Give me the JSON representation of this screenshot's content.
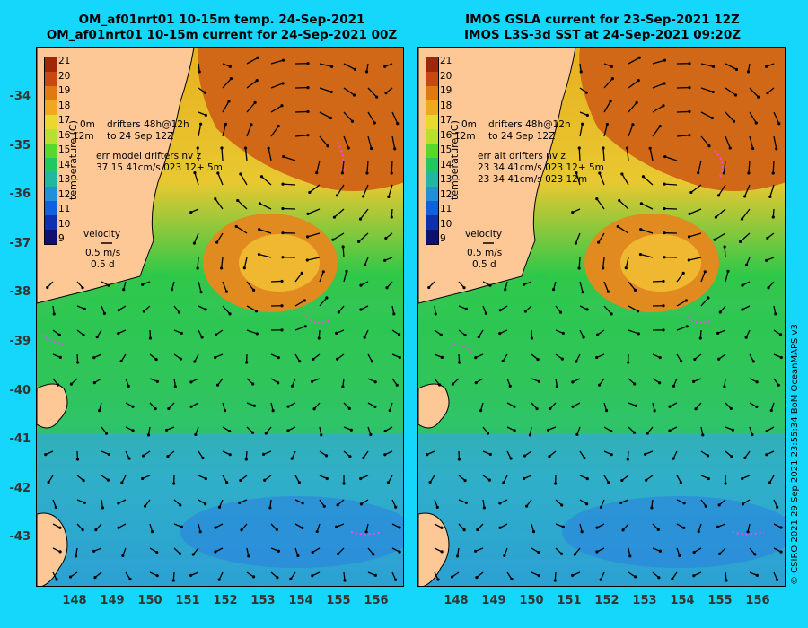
{
  "left_panel": {
    "title_line1": "OM_af01nrt01 10-15m temp. 24-Sep-2021",
    "title_line2": "OM_af01nrt01 10-15m current for 24-Sep-2021 00Z",
    "drifters_line1": "drifters 48h@12h",
    "drifters_line2": "to 24 Sep 12Z",
    "depth_label1": "0m",
    "depth_label2": "12m",
    "err_line1": "err model drifters nv z",
    "err_line2": "37 15 41cm/s 023 12+ 5m",
    "err_line3": ""
  },
  "right_panel": {
    "title_line1": "IMOS GSLA current for 23-Sep-2021 12Z",
    "title_line2": "IMOS L3S-3d SST at 24-Sep-2021 09:20Z",
    "drifters_line1": "drifters 48h@12h",
    "drifters_line2": "to 24 Sep 12Z",
    "depth_label1": "0m",
    "depth_label2": "12m",
    "err_line1": "err alt drifters nv z",
    "err_line2": "23 34 41cm/s 023 12+ 5m",
    "err_line3": "23 34 41cm/s 023 12m"
  },
  "velocity_legend": {
    "title": "velocity",
    "speed": "0.5 m/s",
    "time": "0.5 d"
  },
  "colorbar": {
    "label": "temperature (C)",
    "ticks": [
      "21",
      "20",
      "19",
      "18",
      "17",
      "16",
      "15",
      "14",
      "13",
      "12",
      "11",
      "10",
      "9"
    ],
    "colors": [
      "#a0280a",
      "#c84810",
      "#e07a10",
      "#f0a820",
      "#e8d830",
      "#b8e030",
      "#58d828",
      "#20c860",
      "#20b8a0",
      "#2090d8",
      "#1060e0",
      "#1030b0",
      "#101070"
    ]
  },
  "lat_labels": [
    "-34",
    "-35",
    "-36",
    "-37",
    "-38",
    "-39",
    "-40",
    "-41",
    "-42",
    "-43"
  ],
  "lon_labels": [
    "148",
    "149",
    "150",
    "151",
    "152",
    "153",
    "154",
    "155",
    "156"
  ],
  "credit": "© CSIRO 2021  29 Sep 2021 23:55:34 BoM OceanMAPS v3",
  "colors": {
    "background": "#15d7fb",
    "land": "#fdc896",
    "drifters": "#ff40ff"
  }
}
